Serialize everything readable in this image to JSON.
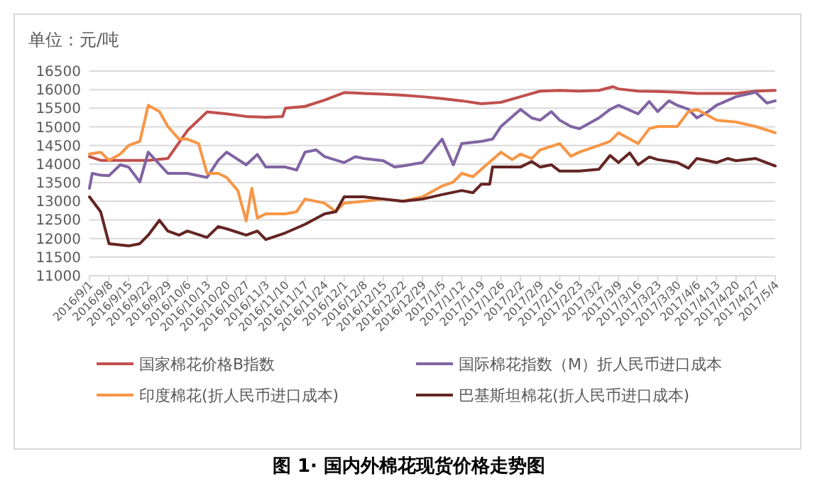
{
  "chart_data": {
    "type": "line",
    "title": "图 1· 国内外棉花现货价格走势图",
    "ylabel": "单位：元/吨",
    "xlim": [
      "2016-09-01",
      "2017-05-04"
    ],
    "ylim": [
      11000,
      16500
    ],
    "yticks": [
      11000,
      11500,
      12000,
      12500,
      13000,
      13500,
      14000,
      14500,
      15000,
      15500,
      16000,
      16500
    ],
    "xticks": [
      {
        "value": "2016-09-01",
        "label": "2016/9/1"
      },
      {
        "value": "2016-09-08",
        "label": "2016/9/8"
      },
      {
        "value": "2016-09-15",
        "label": "2016/9/15"
      },
      {
        "value": "2016-09-22",
        "label": "2016/9/22"
      },
      {
        "value": "2016-09-29",
        "label": "2016/9/29"
      },
      {
        "value": "2016-10-06",
        "label": "2016/10/6"
      },
      {
        "value": "2016-10-13",
        "label": "2016/10/13"
      },
      {
        "value": "2016-10-20",
        "label": "2016/10/20"
      },
      {
        "value": "2016-10-27",
        "label": "2016/10/27"
      },
      {
        "value": "2016-11-03",
        "label": "2016/11/3"
      },
      {
        "value": "2016-11-10",
        "label": "2016/11/10"
      },
      {
        "value": "2016-11-17",
        "label": "2016/11/17"
      },
      {
        "value": "2016-11-24",
        "label": "2016/11/24"
      },
      {
        "value": "2016-12-01",
        "label": "2016/12/1"
      },
      {
        "value": "2016-12-08",
        "label": "2016/12/8"
      },
      {
        "value": "2016-12-15",
        "label": "2016/12/15"
      },
      {
        "value": "2016-12-22",
        "label": "2016/12/22"
      },
      {
        "value": "2016-12-29",
        "label": "2016/12/29"
      },
      {
        "value": "2017-01-05",
        "label": "2017/1/5"
      },
      {
        "value": "2017-01-12",
        "label": "2017/1/12"
      },
      {
        "value": "2017-01-19",
        "label": "2017/1/19"
      },
      {
        "value": "2017-01-26",
        "label": "2017/1/26"
      },
      {
        "value": "2017-02-02",
        "label": "2017/2/2"
      },
      {
        "value": "2017-02-09",
        "label": "2017/2/9"
      },
      {
        "value": "2017-02-16",
        "label": "2017/2/16"
      },
      {
        "value": "2017-02-23",
        "label": "2017/2/23"
      },
      {
        "value": "2017-03-02",
        "label": "2017/3/2"
      },
      {
        "value": "2017-03-09",
        "label": "2017/3/9"
      },
      {
        "value": "2017-03-16",
        "label": "2017/3/16"
      },
      {
        "value": "2017-03-23",
        "label": "2017/3/23"
      },
      {
        "value": "2017-03-30",
        "label": "2017/3/30"
      },
      {
        "value": "2017-04-06",
        "label": "2017/4/6"
      },
      {
        "value": "2017-04-13",
        "label": "2017/4/13"
      },
      {
        "value": "2017-04-20",
        "label": "2017/4/20"
      },
      {
        "value": "2017-04-27",
        "label": "2017/4/27"
      },
      {
        "value": "2017-05-04",
        "label": "2017/5/4"
      }
    ],
    "grid": "y",
    "legend": "bottom",
    "marker": "none",
    "line_style": "solid",
    "series": [
      {
        "name": "国家棉花价格B指数",
        "color": "#c0504d",
        "x": [
          "2016-09-01",
          "2016-09-05",
          "2016-09-08",
          "2016-09-15",
          "2016-09-22",
          "2016-09-29",
          "2016-10-06",
          "2016-10-13",
          "2016-10-20",
          "2016-10-27",
          "2016-11-03",
          "2016-11-09",
          "2016-11-10",
          "2016-11-17",
          "2016-11-24",
          "2016-12-01",
          "2016-12-08",
          "2016-12-15",
          "2016-12-22",
          "2016-12-29",
          "2017-01-05",
          "2017-01-12",
          "2017-01-19",
          "2017-01-26",
          "2017-02-02",
          "2017-02-09",
          "2017-02-16",
          "2017-02-23",
          "2017-03-02",
          "2017-03-07",
          "2017-03-09",
          "2017-03-16",
          "2017-03-23",
          "2017-03-30",
          "2017-04-06",
          "2017-04-13",
          "2017-04-20",
          "2017-04-27",
          "2017-05-04"
        ],
        "values": [
          14200,
          14100,
          14100,
          14100,
          14100,
          14150,
          14900,
          15400,
          15350,
          15280,
          15260,
          15280,
          15500,
          15550,
          15720,
          15920,
          15900,
          15880,
          15850,
          15810,
          15760,
          15700,
          15620,
          15660,
          15810,
          15960,
          15980,
          15960,
          15980,
          16080,
          16020,
          15960,
          15950,
          15930,
          15900,
          15900,
          15900,
          15960,
          15980
        ]
      },
      {
        "name": "国际棉花指数（M）折人民币进口成本",
        "color": "#8064a2",
        "x": [
          "2016-09-01",
          "2016-09-02",
          "2016-09-05",
          "2016-09-08",
          "2016-09-12",
          "2016-09-15",
          "2016-09-19",
          "2016-09-22",
          "2016-09-29",
          "2016-10-06",
          "2016-10-13",
          "2016-10-17",
          "2016-10-20",
          "2016-10-27",
          "2016-10-31",
          "2016-11-03",
          "2016-11-10",
          "2016-11-14",
          "2016-11-17",
          "2016-11-21",
          "2016-11-24",
          "2016-12-01",
          "2016-12-05",
          "2016-12-08",
          "2016-12-15",
          "2016-12-19",
          "2016-12-22",
          "2016-12-29",
          "2017-01-05",
          "2017-01-09",
          "2017-01-12",
          "2017-01-19",
          "2017-01-23",
          "2017-01-26",
          "2017-02-02",
          "2017-02-06",
          "2017-02-09",
          "2017-02-13",
          "2017-02-16",
          "2017-02-20",
          "2017-02-23",
          "2017-03-02",
          "2017-03-06",
          "2017-03-09",
          "2017-03-16",
          "2017-03-20",
          "2017-03-23",
          "2017-03-27",
          "2017-03-30",
          "2017-04-03",
          "2017-04-06",
          "2017-04-10",
          "2017-04-13",
          "2017-04-20",
          "2017-04-27",
          "2017-05-01",
          "2017-05-04"
        ],
        "values": [
          13350,
          13750,
          13700,
          13690,
          13980,
          13920,
          13520,
          14320,
          13750,
          13750,
          13640,
          14100,
          14320,
          13980,
          14260,
          13920,
          13920,
          13840,
          14320,
          14380,
          14200,
          14040,
          14200,
          14150,
          14090,
          13920,
          13950,
          14040,
          14670,
          13980,
          14550,
          14610,
          14670,
          15010,
          15470,
          15240,
          15180,
          15410,
          15180,
          15010,
          14950,
          15240,
          15470,
          15580,
          15350,
          15680,
          15410,
          15700,
          15580,
          15470,
          15240,
          15410,
          15580,
          15810,
          15930,
          15640,
          15700
        ]
      },
      {
        "name": "印度棉花(折人民币进口成本)",
        "color": "#f79646",
        "x": [
          "2016-09-01",
          "2016-09-05",
          "2016-09-08",
          "2016-09-12",
          "2016-09-15",
          "2016-09-19",
          "2016-09-22",
          "2016-09-26",
          "2016-09-29",
          "2016-10-03",
          "2016-10-06",
          "2016-10-10",
          "2016-10-13",
          "2016-10-17",
          "2016-10-20",
          "2016-10-24",
          "2016-10-27",
          "2016-10-29",
          "2016-10-31",
          "2016-11-03",
          "2016-11-10",
          "2016-11-14",
          "2016-11-17",
          "2016-11-24",
          "2016-11-28",
          "2016-12-01",
          "2016-12-08",
          "2016-12-15",
          "2016-12-22",
          "2016-12-29",
          "2017-01-05",
          "2017-01-09",
          "2017-01-12",
          "2017-01-16",
          "2017-01-19",
          "2017-01-26",
          "2017-01-30",
          "2017-02-02",
          "2017-02-06",
          "2017-02-09",
          "2017-02-16",
          "2017-02-20",
          "2017-02-23",
          "2017-03-02",
          "2017-03-06",
          "2017-03-09",
          "2017-03-16",
          "2017-03-20",
          "2017-03-23",
          "2017-03-30",
          "2017-04-03",
          "2017-04-06",
          "2017-04-13",
          "2017-04-20",
          "2017-04-27",
          "2017-05-04"
        ],
        "values": [
          14270,
          14320,
          14100,
          14270,
          14500,
          14610,
          15580,
          15410,
          15010,
          14670,
          14670,
          14550,
          13750,
          13750,
          13640,
          13290,
          12470,
          13350,
          12550,
          12660,
          12660,
          12720,
          13060,
          12950,
          12720,
          12950,
          13000,
          13060,
          13000,
          13120,
          13410,
          13520,
          13750,
          13660,
          13860,
          14320,
          14120,
          14270,
          14150,
          14380,
          14550,
          14210,
          14320,
          14500,
          14610,
          14840,
          14550,
          14950,
          15010,
          15010,
          15410,
          15470,
          15180,
          15130,
          15010,
          14840
        ]
      },
      {
        "name": "巴基斯坦棉花(折人民币进口成本)",
        "color": "#632523",
        "x": [
          "2016-09-01",
          "2016-09-05",
          "2016-09-08",
          "2016-09-15",
          "2016-09-19",
          "2016-09-22",
          "2016-09-26",
          "2016-09-29",
          "2016-10-03",
          "2016-10-06",
          "2016-10-13",
          "2016-10-17",
          "2016-10-20",
          "2016-10-27",
          "2016-10-31",
          "2016-11-03",
          "2016-11-10",
          "2016-11-17",
          "2016-11-24",
          "2016-11-28",
          "2016-12-01",
          "2016-12-08",
          "2016-12-15",
          "2016-12-22",
          "2016-12-29",
          "2017-01-05",
          "2017-01-12",
          "2017-01-16",
          "2017-01-19",
          "2017-01-22",
          "2017-01-23",
          "2017-01-26",
          "2017-02-02",
          "2017-02-06",
          "2017-02-09",
          "2017-02-13",
          "2017-02-16",
          "2017-02-23",
          "2017-03-02",
          "2017-03-06",
          "2017-03-09",
          "2017-03-13",
          "2017-03-16",
          "2017-03-20",
          "2017-03-23",
          "2017-03-30",
          "2017-04-03",
          "2017-04-06",
          "2017-04-13",
          "2017-04-17",
          "2017-04-20",
          "2017-04-27",
          "2017-05-04"
        ],
        "values": [
          13120,
          12720,
          11860,
          11800,
          11860,
          12090,
          12490,
          12200,
          12090,
          12200,
          12030,
          12320,
          12260,
          12090,
          12200,
          11970,
          12150,
          12380,
          12660,
          12720,
          13120,
          13120,
          13060,
          13000,
          13060,
          13180,
          13290,
          13230,
          13460,
          13460,
          13920,
          13920,
          13920,
          14070,
          13920,
          13980,
          13810,
          13810,
          13860,
          14230,
          14040,
          14300,
          13980,
          14190,
          14120,
          14040,
          13890,
          14150,
          14040,
          14150,
          14090,
          14150,
          13950
        ]
      }
    ]
  }
}
